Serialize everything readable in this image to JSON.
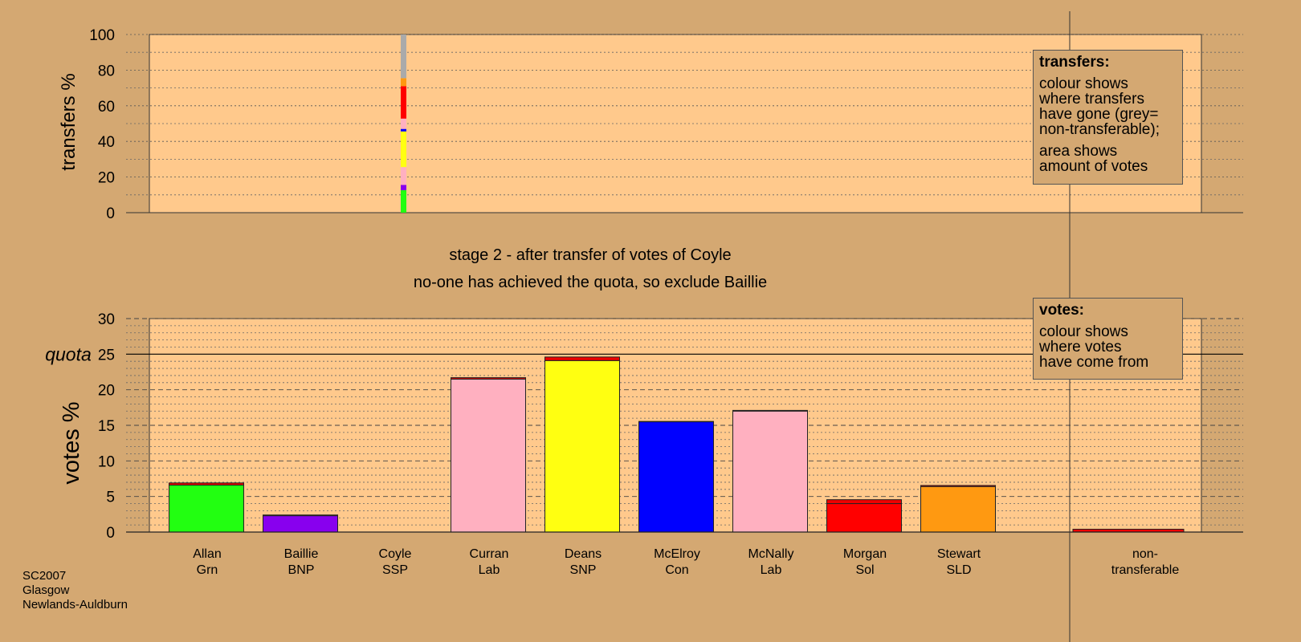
{
  "chart_data": [
    {
      "type": "bar",
      "subtype": "stacked",
      "ylabel": "transfers %",
      "ylim": [
        0,
        100
      ],
      "yticks": [
        0,
        20,
        40,
        60,
        80,
        100
      ],
      "grid": "dotted",
      "column": "Coyle SSP",
      "series": [
        {
          "name": "Allan Grn",
          "color": "#22FF11",
          "value": 12.6
        },
        {
          "name": "Baillie BNP",
          "color": "#8800EE",
          "value": 3.0
        },
        {
          "name": "Curran Lab",
          "color": "#FFB0C0",
          "value": 10.0
        },
        {
          "name": "Deans SNP",
          "color": "#FFFF11",
          "value": 20.0
        },
        {
          "name": "McElroy Con",
          "color": "#0000FF",
          "value": 1.4
        },
        {
          "name": "McNally Lab",
          "color": "#FFB0C0",
          "value": 5.8
        },
        {
          "name": "Morgan Sol",
          "color": "#FF0000",
          "value": 18.2
        },
        {
          "name": "Stewart SLD",
          "color": "#FF9911",
          "value": 4.5
        },
        {
          "name": "non-transferable",
          "color": "#AAAAAA",
          "value": 24.5
        }
      ]
    },
    {
      "type": "bar",
      "subtype": "stacked",
      "title": "stage 2 - after transfer of votes of Coyle",
      "subtitle": "no-one has achieved the quota, so exclude Baillie",
      "ylabel": "votes %",
      "ylim": [
        0,
        30
      ],
      "yticks": [
        0,
        5,
        10,
        15,
        20,
        25,
        30
      ],
      "quota": 25,
      "quota_label": "quota",
      "grid": "dashed",
      "categories": [
        {
          "name": "Allan",
          "party": "Grn",
          "base": 6.6,
          "base_color": "#22FF11",
          "transfer": 0.3
        },
        {
          "name": "Baillie",
          "party": "BNP",
          "base": 2.3,
          "base_color": "#8800EE",
          "transfer": 0.1
        },
        {
          "name": "Coyle",
          "party": "SSP",
          "base": 0,
          "base_color": "#FF0000",
          "transfer": 0
        },
        {
          "name": "Curran",
          "party": "Lab",
          "base": 21.5,
          "base_color": "#FFB0C0",
          "transfer": 0.2
        },
        {
          "name": "Deans",
          "party": "SNP",
          "base": 24.1,
          "base_color": "#FFFF11",
          "transfer": 0.5
        },
        {
          "name": "McElroy",
          "party": "Con",
          "base": 15.5,
          "base_color": "#0000FF",
          "transfer": 0.05
        },
        {
          "name": "McNally",
          "party": "Lab",
          "base": 17.0,
          "base_color": "#FFB0C0",
          "transfer": 0.1
        },
        {
          "name": "Morgan",
          "party": "Sol",
          "base": 4.0,
          "base_color": "#FF0000",
          "transfer": 0.55
        },
        {
          "name": "Stewart",
          "party": "SLD",
          "base": 6.4,
          "base_color": "#FF9911",
          "transfer": 0.15
        }
      ],
      "nontransferable": {
        "line1": "non-",
        "line2": "transferable",
        "base": 0,
        "transfer": 0.4
      },
      "transfer_color": "#EE0000"
    }
  ],
  "legends": {
    "transfers": {
      "title": "transfers:",
      "para1": [
        "colour shows",
        "where transfers",
        "have gone (grey=",
        "non-transferable);"
      ],
      "para2": [
        "area shows",
        "amount of votes"
      ]
    },
    "votes": {
      "title": "votes:",
      "para1": [
        "colour shows",
        "where votes",
        "have come from"
      ]
    }
  },
  "footer": {
    "line1": "SC2007",
    "line2": "Glasgow",
    "line3": "Newlands-Auldburn"
  }
}
